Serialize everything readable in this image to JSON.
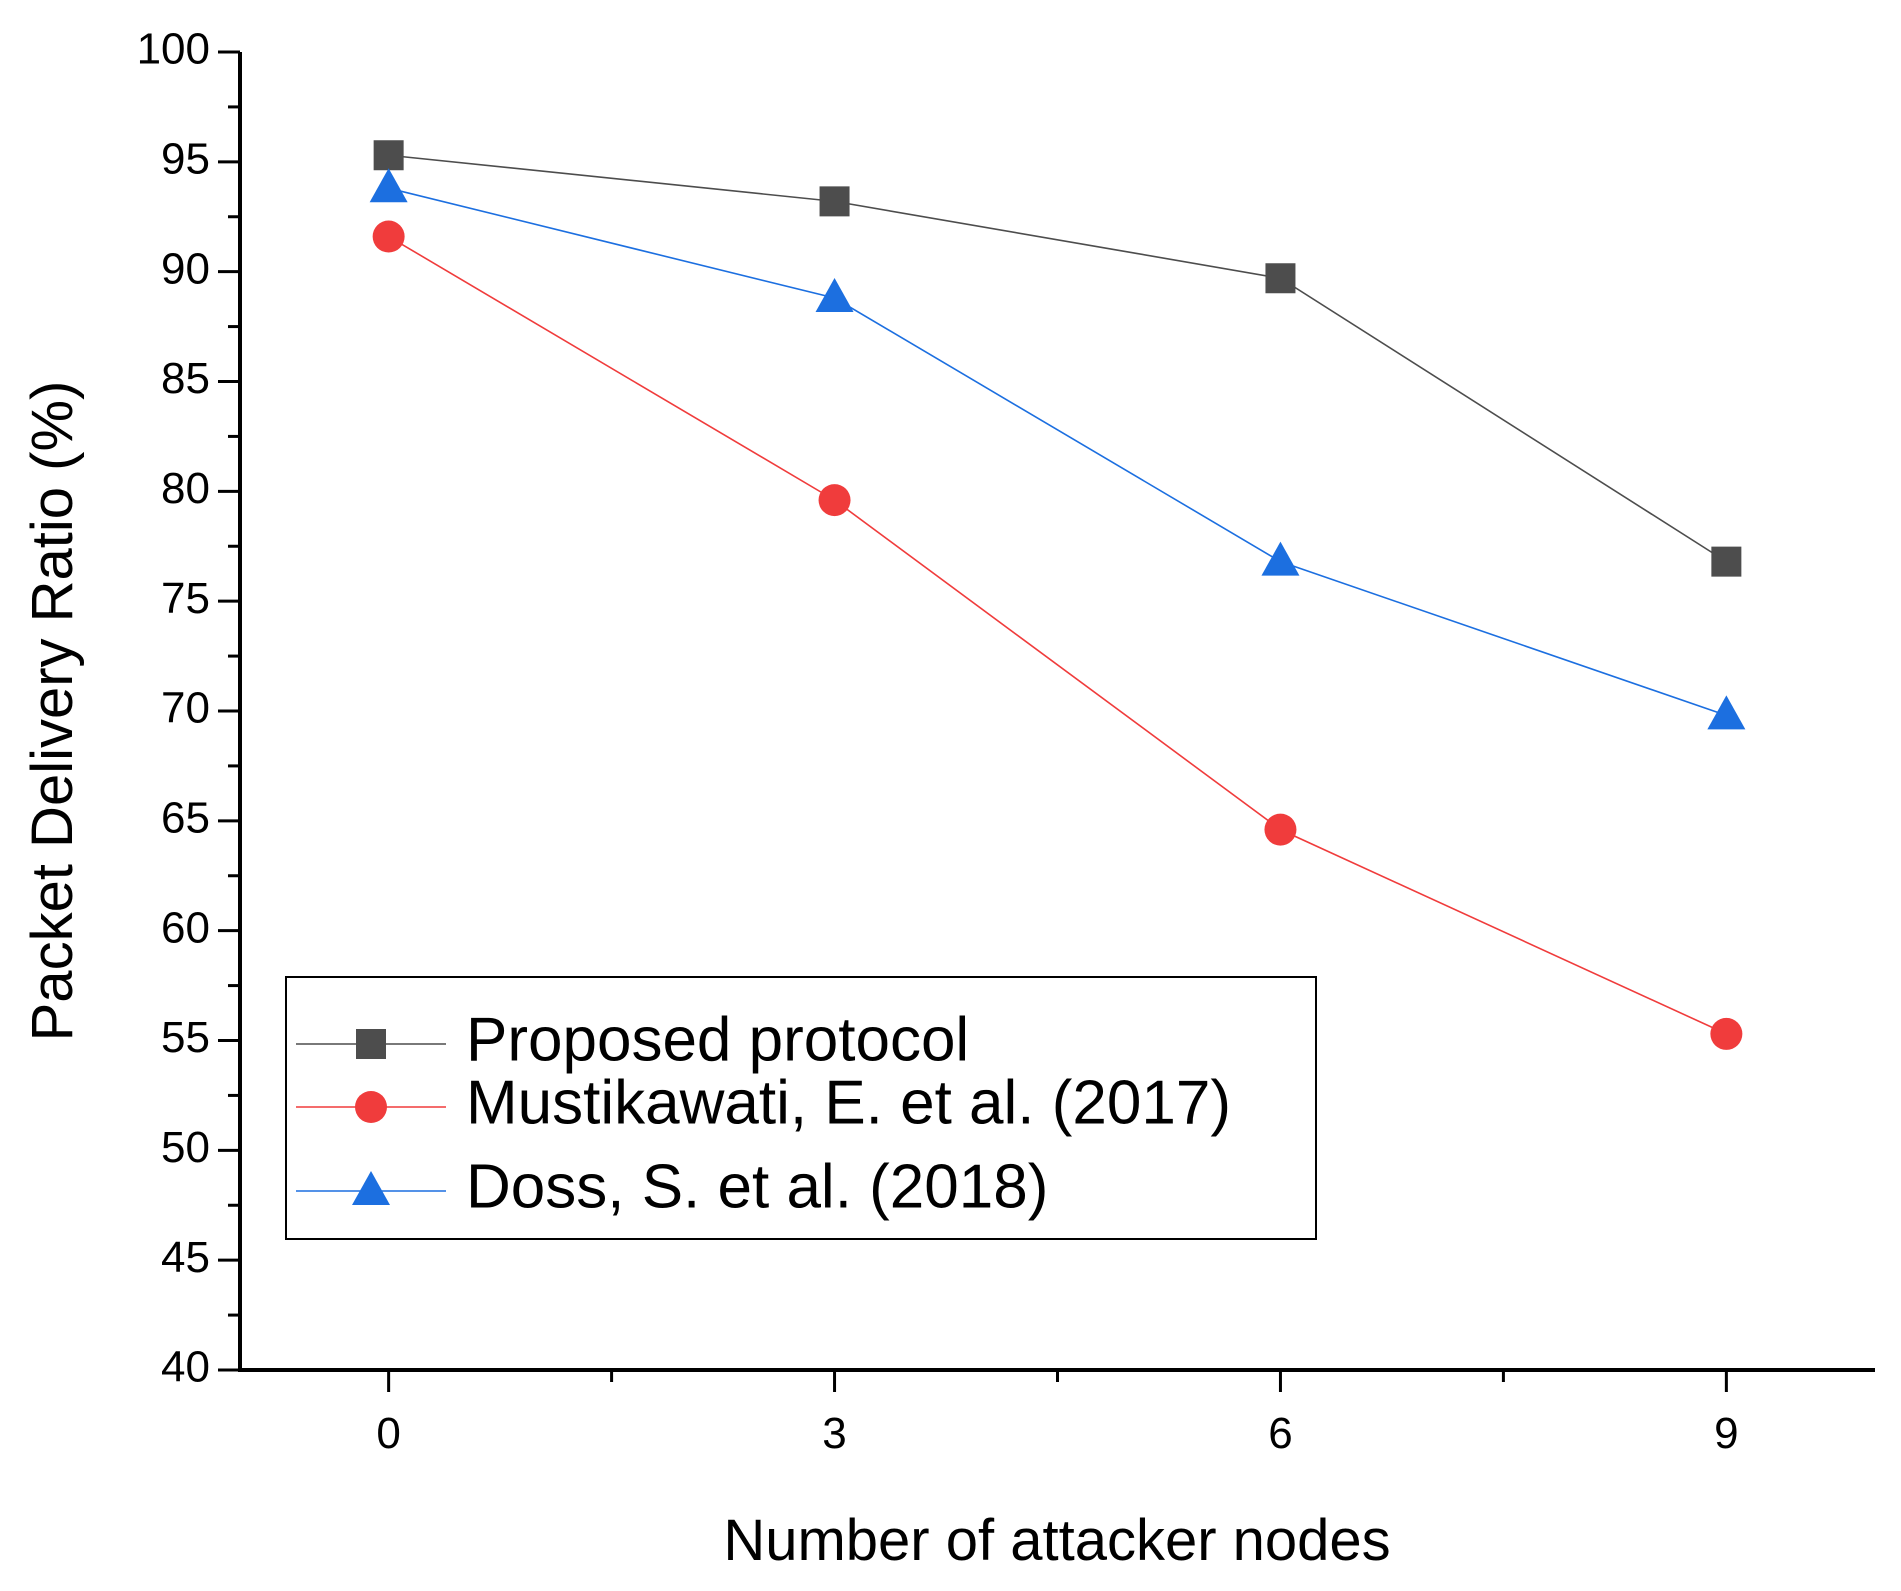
{
  "chart_data": {
    "type": "line",
    "title": "",
    "xlabel": "Number of attacker nodes",
    "ylabel": "Packet Delivery Ratio (%)",
    "x": [
      0,
      3,
      6,
      9
    ],
    "xlim": [
      -1,
      10
    ],
    "ylim": [
      40,
      100
    ],
    "xticks": [
      0,
      3,
      6,
      9
    ],
    "yticks": [
      40,
      45,
      50,
      55,
      60,
      65,
      70,
      75,
      80,
      85,
      90,
      95,
      100
    ],
    "xtick_labels": [
      "0",
      "3",
      "6",
      "9"
    ],
    "ytick_labels": [
      "40",
      "45",
      "50",
      "55",
      "60",
      "65",
      "70",
      "75",
      "80",
      "85",
      "90",
      "95",
      "100"
    ],
    "grid": false,
    "legend_position": "bottom-left",
    "series": [
      {
        "name": "Proposed protocol",
        "marker": "square",
        "color": "#4d4d4d",
        "values": [
          95.3,
          93.2,
          89.7,
          76.8
        ]
      },
      {
        "name": "Mustikawati, E. et al. (2017)",
        "marker": "circle",
        "color": "#f03c3c",
        "values": [
          91.6,
          79.6,
          64.6,
          55.3
        ]
      },
      {
        "name": "Doss, S. et al. (2018)",
        "marker": "triangle",
        "color": "#1c6fe0",
        "values": [
          93.8,
          88.8,
          76.8,
          69.8
        ]
      }
    ]
  }
}
